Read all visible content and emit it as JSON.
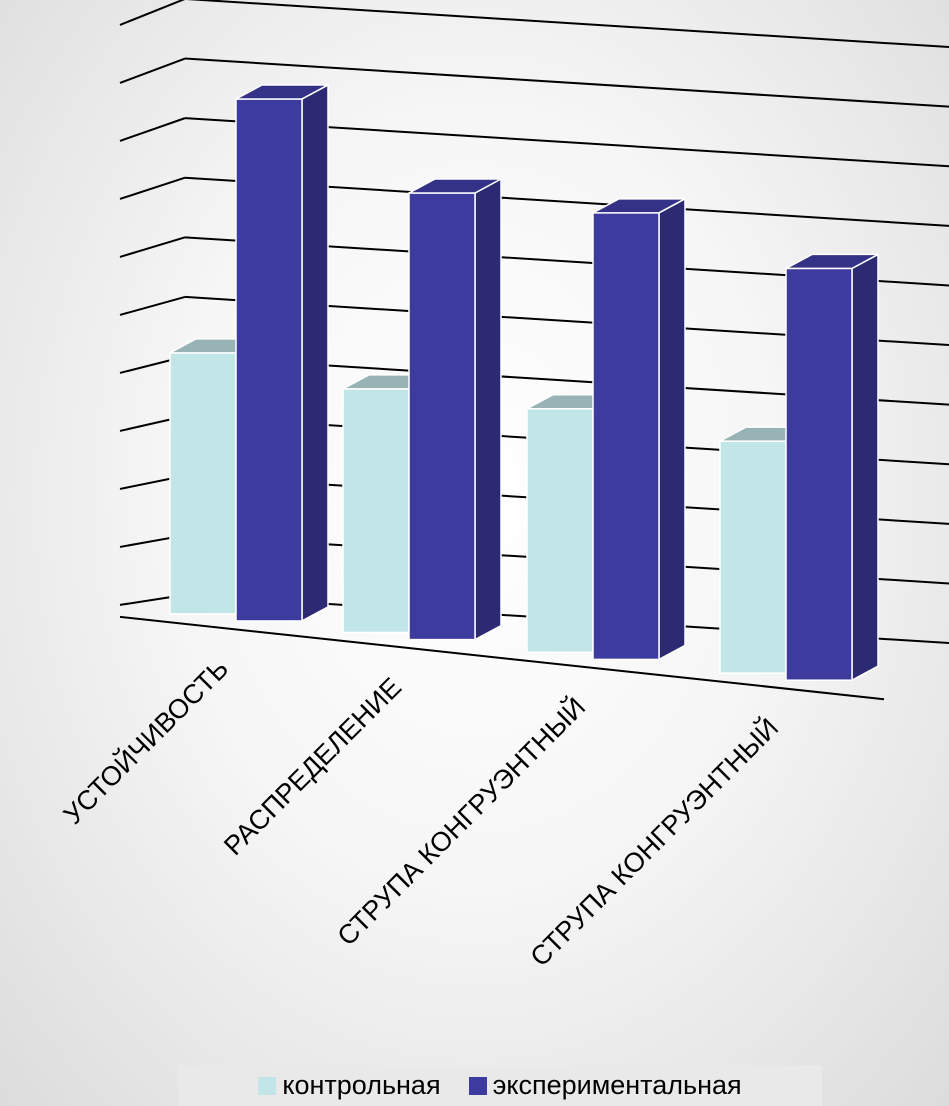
{
  "chart_data": {
    "type": "bar",
    "categories": [
      "УСТОЙЧИВОСТЬ",
      "РАСПРЕДЕЛЕНИЕ",
      "СТРУПА КОНГРУЭНТНЫЙ",
      "СТРУПА КОНГРУЭНТНЫЙ"
    ],
    "series": [
      {
        "name": "контрольная",
        "values": [
          4.5,
          4.2,
          4.2,
          4.0
        ],
        "color": "#c2e6e8"
      },
      {
        "name": "экспериментальная",
        "values": [
          9.0,
          7.7,
          7.7,
          7.1
        ],
        "color": "#3d3b9e"
      }
    ],
    "ylim": [
      0,
      10
    ],
    "grid": true,
    "axis_labels_shown": false,
    "legend_position": "bottom",
    "projection": "3d-perspective"
  }
}
